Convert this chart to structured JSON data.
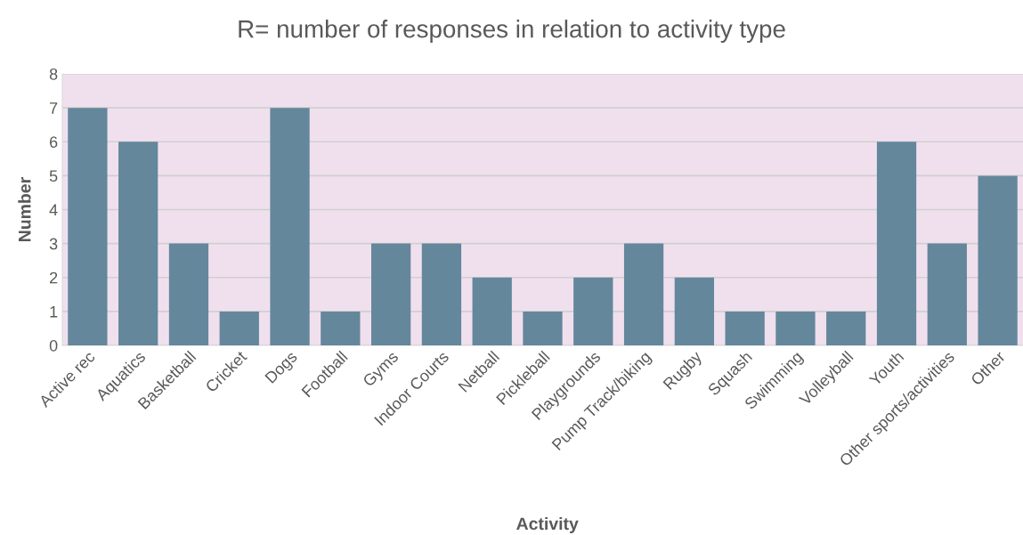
{
  "chart_data": {
    "type": "bar",
    "title": "R= number of responses in relation to activity type",
    "xlabel": "Activity",
    "ylabel": "Number",
    "categories": [
      "Active rec",
      "Aquatics",
      "Basketball",
      "Cricket",
      "Dogs",
      "Football",
      "Gyms",
      "Indoor Courts",
      "Netball",
      "Pickleball",
      "Playgrounds",
      "Pump Track/biking",
      "Rugby",
      "Squash",
      "Swimming",
      "Volleyball",
      "Youth",
      "Other sports/activities",
      "Other"
    ],
    "values": [
      7,
      6,
      3,
      1,
      7,
      1,
      3,
      3,
      2,
      1,
      2,
      3,
      2,
      1,
      1,
      1,
      6,
      3,
      5
    ],
    "color": "#64879c",
    "ylim": [
      0,
      8
    ],
    "yticks": [
      0,
      1,
      2,
      3,
      4,
      5,
      6,
      7,
      8
    ],
    "grid": "y",
    "legend": false
  }
}
